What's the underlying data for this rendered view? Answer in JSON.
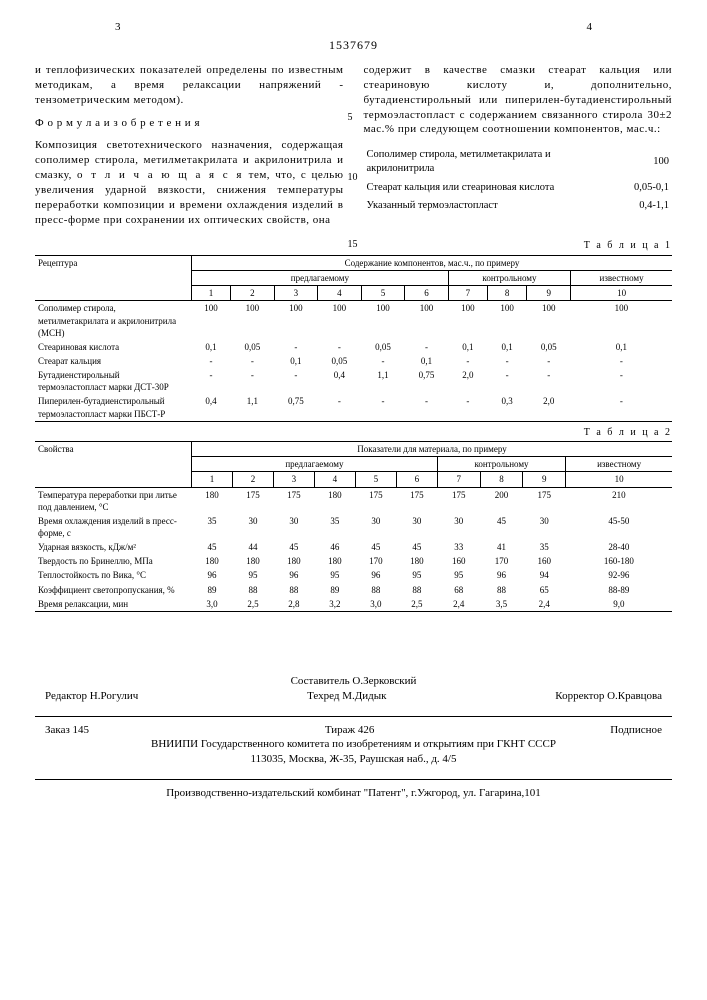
{
  "page_left_num": "3",
  "page_right_num": "4",
  "doc_number": "1537679",
  "side_5": "5",
  "side_10": "10",
  "side_15": "15",
  "left": {
    "p1": "и теплофизических показателей определены по известным методикам, а время релаксации напряжений - тензометрическим методом).",
    "formula_hdr": "Ф о р м у л а  и з о б р е т е н и я",
    "p2_a": "Композиция светотехнического назначения, содержащая сополимер стирола, метилметакрилата и акрилонитрила и смазку, ",
    "p2_b": "о т л и ч а ю щ а я с я",
    "p2_c": " тем, что, с целью увеличения ударной вязкости, снижения температуры переработки композиции и времени охлаждения изделий в пресс-форме при сохранении их оптических свойств, она"
  },
  "right": {
    "p1": "содержит в качестве смазки стеарат кальция или стеариновую кислоту и, дополнительно, бутадиенстирольный или пиперилен-бутадиенстирольный термоэластопласт с содержанием связанного стирола 30±2 мас.% при следующем соотношении компонентов, мас.ч.:",
    "comp": [
      [
        "Сополимер стирола, метилметакрилата и акрилонитрила",
        "100"
      ],
      [
        "Стеарат кальция или стеариновая кислота",
        "0,05-0,1"
      ],
      [
        "Указанный термоэластопласт",
        "0,4-1,1"
      ]
    ]
  },
  "table1": {
    "label": "Т а б л и ц а 1",
    "h_recipe": "Рецептура",
    "h_main": "Содержание компонентов, мас.ч., по примеру",
    "h_g1": "предлагаемому",
    "h_g2": "контрольному",
    "h_g3": "известному",
    "cols": [
      "1",
      "2",
      "3",
      "4",
      "5",
      "6",
      "7",
      "8",
      "9",
      "10"
    ],
    "rows": [
      {
        "lbl": "Сополимер стирола, метилметакрилата и акрилонитрила (МСН)",
        "v": [
          "100",
          "100",
          "100",
          "100",
          "100",
          "100",
          "100",
          "100",
          "100",
          "100"
        ]
      },
      {
        "lbl": "Стеариновая кислота",
        "v": [
          "0,1",
          "0,05",
          "-",
          "-",
          "0,05",
          "-",
          "0,1",
          "0,1",
          "0,05",
          "0,1"
        ]
      },
      {
        "lbl": "Стеарат кальция",
        "v": [
          "-",
          "-",
          "0,1",
          "0,05",
          "-",
          "0,1",
          "-",
          "-",
          "-",
          "-"
        ]
      },
      {
        "lbl": "Бутадиенстирольный термоэластопласт марки ДСТ-30Р",
        "v": [
          "-",
          "-",
          "-",
          "0,4",
          "1,1",
          "0,75",
          "2,0",
          "-",
          "-",
          "-"
        ]
      },
      {
        "lbl": "Пиперилен-бутадиенстирольный термоэластопласт марки ПБСТ-Р",
        "v": [
          "0,4",
          "1,1",
          "0,75",
          "-",
          "-",
          "-",
          "-",
          "0,3",
          "2,0",
          "-"
        ]
      }
    ]
  },
  "table2": {
    "label": "Т а б л и ц а 2",
    "h_recipe": "Свойства",
    "h_main": "Показатели для материала, по примеру",
    "h_g1": "предлагаемому",
    "h_g2": "контрольному",
    "h_g3": "известному",
    "cols": [
      "1",
      "2",
      "3",
      "4",
      "5",
      "6",
      "7",
      "8",
      "9",
      "10"
    ],
    "rows": [
      {
        "lbl": "Температура переработки при литье под давлением, °С",
        "v": [
          "180",
          "175",
          "175",
          "180",
          "175",
          "175",
          "175",
          "200",
          "175",
          "210"
        ]
      },
      {
        "lbl": "Время охлаждения изделий в пресс-форме, с",
        "v": [
          "35",
          "30",
          "30",
          "35",
          "30",
          "30",
          "30",
          "45",
          "30",
          "45-50"
        ]
      },
      {
        "lbl": "Ударная вязкость, кДж/м²",
        "v": [
          "45",
          "44",
          "45",
          "46",
          "45",
          "45",
          "33",
          "41",
          "35",
          "28-40"
        ]
      },
      {
        "lbl": "Твердость по Бринеллю, МПа",
        "v": [
          "180",
          "180",
          "180",
          "180",
          "170",
          "180",
          "160",
          "170",
          "160",
          "160-180"
        ]
      },
      {
        "lbl": "Теплостойкость по Вика, °С",
        "v": [
          "96",
          "95",
          "96",
          "95",
          "96",
          "95",
          "95",
          "96",
          "94",
          "92-96"
        ]
      },
      {
        "lbl": "Коэффициент светопропускания, %",
        "v": [
          "89",
          "88",
          "88",
          "89",
          "88",
          "88",
          "68",
          "88",
          "65",
          "88-89"
        ]
      },
      {
        "lbl": "Время релаксации, мин",
        "v": [
          "3,0",
          "2,5",
          "2,8",
          "3,2",
          "3,0",
          "2,5",
          "2,4",
          "3,5",
          "2,4",
          "9,0"
        ]
      }
    ]
  },
  "credits": {
    "compiler": "Составитель О.Зерковский",
    "editor": "Редактор Н.Рогулич",
    "techred": "Техред М.Дидык",
    "corrector": "Корректор О.Кравцова"
  },
  "footer": {
    "order": "Заказ 145",
    "tirage": "Тираж 426",
    "sub": "Подписное",
    "org": "ВНИИПИ Государственного комитета по изобретениям и открытиям при ГКНТ СССР",
    "addr": "113035, Москва, Ж-35, Раушская наб., д. 4/5",
    "prod": "Производственно-издательский комбинат \"Патент\", г.Ужгород, ул. Гагарина,101"
  }
}
